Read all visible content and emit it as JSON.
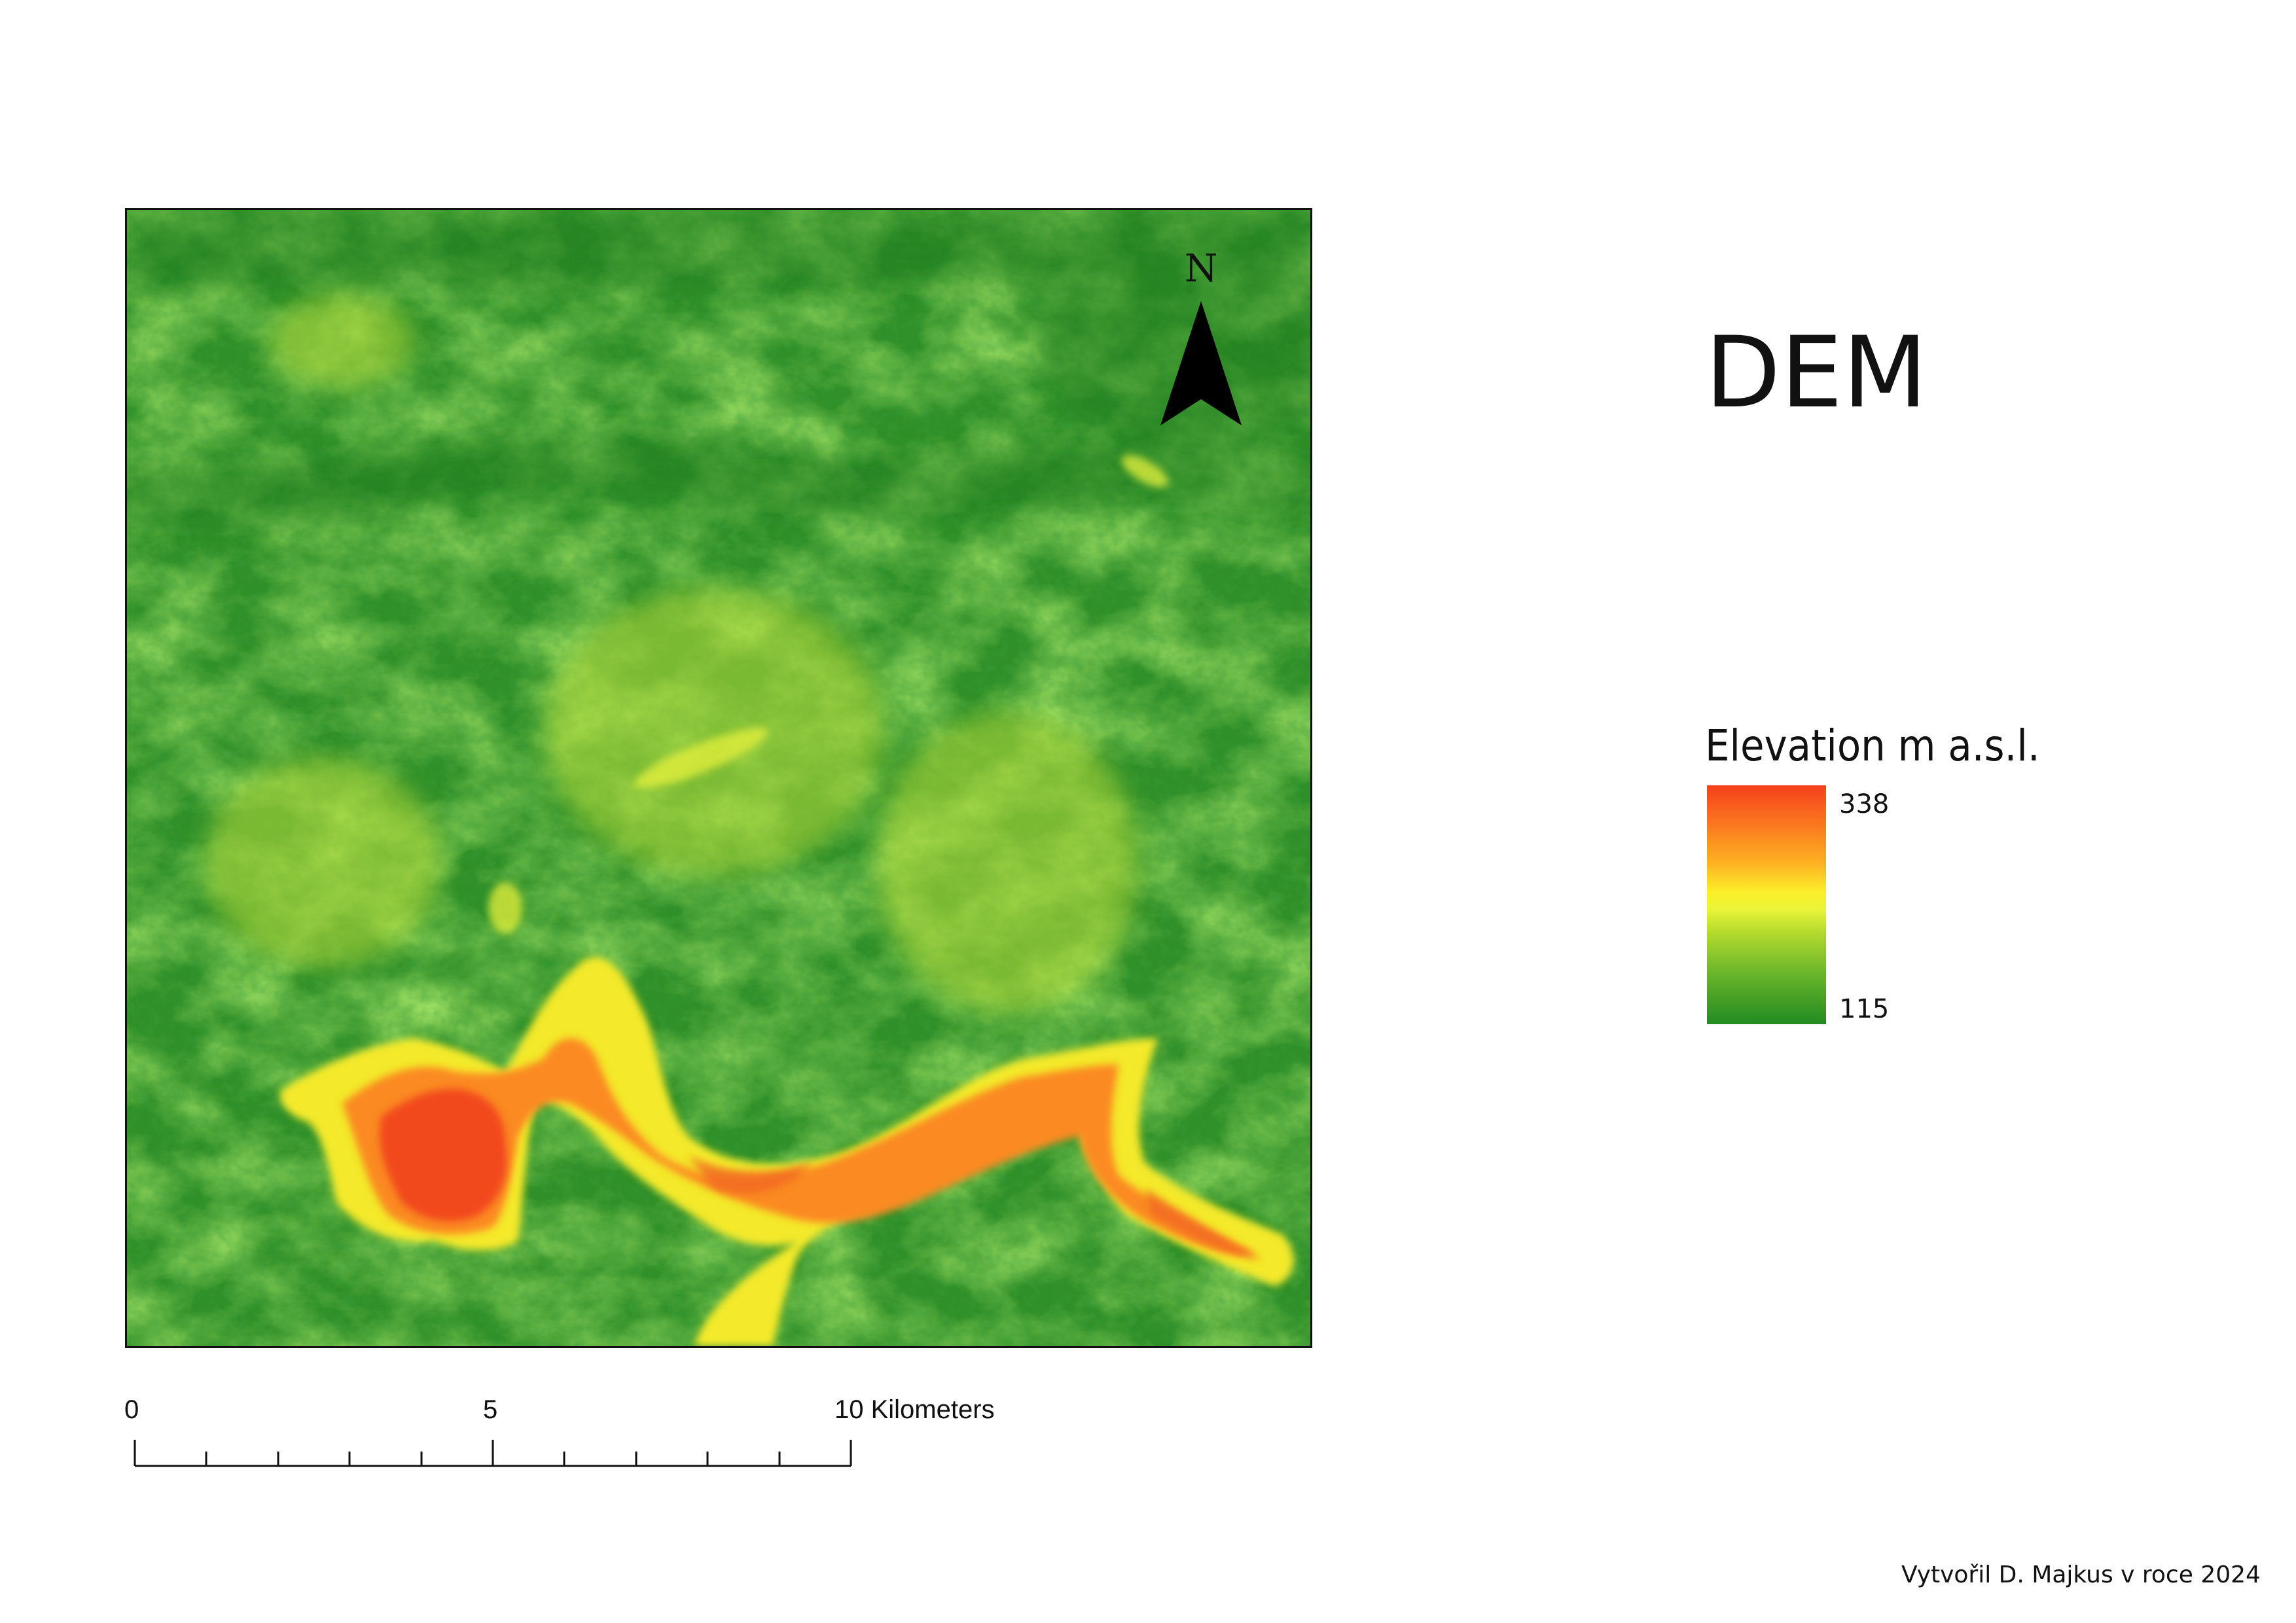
{
  "map": {
    "title": "DEM",
    "north_label": "N",
    "legend": {
      "title": "Elevation m a.s.l.",
      "max": "338",
      "min": "115",
      "colors": [
        "#f5401c",
        "#fb7d1f",
        "#fdb322",
        "#fbf02a",
        "#e9f438",
        "#b2da2d",
        "#6cb72a",
        "#228b22"
      ]
    },
    "scalebar": {
      "labels": [
        "0",
        "5",
        "10 Kilometers"
      ],
      "range_km": [
        0,
        10
      ]
    },
    "credit": "Vytvořil D. Majkus v roce 2024"
  }
}
